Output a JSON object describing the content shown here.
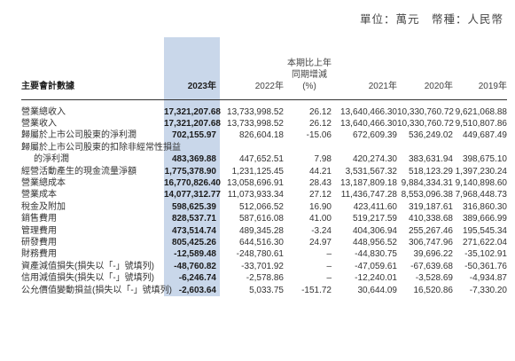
{
  "unit_line": "單位：萬元　幣種：人民幣",
  "table": {
    "header_item": "主要會計數據",
    "header_2023": "2023年",
    "header_2022": "2022年",
    "header_change_1": "本期比上年",
    "header_change_2": "同期增減",
    "header_change_3": "(%)",
    "header_2021": "2021年",
    "header_2020": "2020年",
    "header_2019": "2019年",
    "rows": [
      {
        "label": "營業總收入",
        "y2023": "17,321,207.68",
        "y2022": "13,733,998.52",
        "chg": "26.12",
        "y2021": "13,640,466.30",
        "y2020": "10,330,760.72",
        "y2019": "9,621,068.88"
      },
      {
        "label": "營業收入",
        "y2023": "17,321,207.68",
        "y2022": "13,733,998.52",
        "chg": "26.12",
        "y2021": "13,640,466.30",
        "y2020": "10,330,760.72",
        "y2019": "9,510,807.86"
      },
      {
        "label": "歸屬於上市公司股東的淨利潤",
        "y2023": "702,155.97",
        "y2022": "826,604.18",
        "chg": "-15.06",
        "y2021": "672,609.39",
        "y2020": "536,249.02",
        "y2019": "449,687.49"
      },
      {
        "label": "歸屬於上市公司股東的扣除非經常性損益",
        "y2023": "",
        "y2022": "",
        "chg": "",
        "y2021": "",
        "y2020": "",
        "y2019": ""
      },
      {
        "label": "的淨利潤",
        "indent": true,
        "y2023": "483,369.88",
        "y2022": "447,652.51",
        "chg": "7.98",
        "y2021": "420,274.30",
        "y2020": "383,631.94",
        "y2019": "398,675.10"
      },
      {
        "label": "經營活動產生的現金流量淨額",
        "y2023": "1,775,378.90",
        "y2022": "1,231,125.45",
        "chg": "44.21",
        "y2021": "3,531,567.32",
        "y2020": "518,123.29",
        "y2019": "1,397,230.24"
      },
      {
        "label": "營業總成本",
        "y2023": "16,770,826.40",
        "y2022": "13,058,696.91",
        "chg": "28.43",
        "y2021": "13,187,809.18",
        "y2020": "9,884,334.31",
        "y2019": "9,140,898.60"
      },
      {
        "label": "營業成本",
        "y2023": "14,077,312.77",
        "y2022": "11,073,933.34",
        "chg": "27.12",
        "y2021": "11,436,747.28",
        "y2020": "8,553,096.38",
        "y2019": "7,968,448.73"
      },
      {
        "label": "稅金及附加",
        "y2023": "598,625.39",
        "y2022": "512,066.52",
        "chg": "16.90",
        "y2021": "423,411.60",
        "y2020": "319,187.61",
        "y2019": "316,860.30"
      },
      {
        "label": "銷售費用",
        "y2023": "828,537.71",
        "y2022": "587,616.08",
        "chg": "41.00",
        "y2021": "519,217.59",
        "y2020": "410,338.68",
        "y2019": "389,666.99"
      },
      {
        "label": "管理費用",
        "y2023": "473,514.74",
        "y2022": "489,345.28",
        "chg": "-3.24",
        "y2021": "404,306.94",
        "y2020": "255,267.46",
        "y2019": "195,545.34"
      },
      {
        "label": "研發費用",
        "y2023": "805,425.26",
        "y2022": "644,516.30",
        "chg": "24.97",
        "y2021": "448,956.52",
        "y2020": "306,747.96",
        "y2019": "271,622.04"
      },
      {
        "label": "財務費用",
        "y2023": "-12,589.48",
        "y2022": "-248,780.61",
        "chg": "–",
        "y2021": "-44,830.75",
        "y2020": "39,696.22",
        "y2019": "-35,102.91"
      },
      {
        "label": "資產減值損失(損失以「-」號填列)",
        "y2023": "-48,760.82",
        "y2022": "-33,701.92",
        "chg": "–",
        "y2021": "-47,059.61",
        "y2020": "-67,639.68",
        "y2019": "-50,361.76"
      },
      {
        "label": "信用減值損失(損失以「-」號填列)",
        "y2023": "-6,246.74",
        "y2022": "-2,578.86",
        "chg": "–",
        "y2021": "-12,240.01",
        "y2020": "-3,528.69",
        "y2019": "-4,934.87"
      },
      {
        "label": "公允價值變動損益(損失以「-」號填列)",
        "y2023": "-2,603.64",
        "y2022": "5,033.75",
        "chg": "-151.72",
        "y2021": "30,644.09",
        "y2020": "16,520.86",
        "y2019": "-7,330.20"
      }
    ]
  }
}
